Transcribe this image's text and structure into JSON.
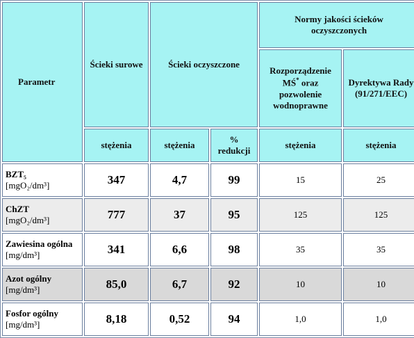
{
  "header": {
    "parameter": "Parametr",
    "raw": "Ścieki surowe",
    "treated": "Ścieki oczyszczone",
    "norms": "Normy jakości ścieków oczyszczonych",
    "regulation": {
      "text": "Rozporządzenie MŚ",
      "sup": "*",
      "rest": "oraz pozwolenie wodnoprawne"
    },
    "directive": "Dyrektywa Rady (91/271/EEC)",
    "subheaders": [
      "stężenia",
      "stężenia",
      "% redukcji",
      "stężenia",
      "stężenia"
    ]
  },
  "rows": [
    {
      "parameter": "BZT₅",
      "unit": "[mgO₂/dm³]",
      "values": [
        "347",
        "4,7",
        "99",
        "15",
        "25"
      ]
    },
    {
      "parameter": "ChZT",
      "unit": "[mgO₂/dm³]",
      "values": [
        "777",
        "37",
        "95",
        "125",
        "125"
      ]
    },
    {
      "parameter": "Zawiesina ogólna",
      "unit": "[mg/dm³]",
      "values": [
        "341",
        "6,6",
        "98",
        "35",
        "35"
      ]
    },
    {
      "parameter": "Azot ogólny",
      "unit": "[mg/dm³]",
      "values": [
        "85,0",
        "6,7",
        "92",
        "10",
        "10"
      ]
    },
    {
      "parameter": "Fosfor ogólny",
      "unit": "[mg/dm³]",
      "values": [
        "8,18",
        "0,52",
        "94",
        "1,0",
        "1,0"
      ]
    }
  ]
}
